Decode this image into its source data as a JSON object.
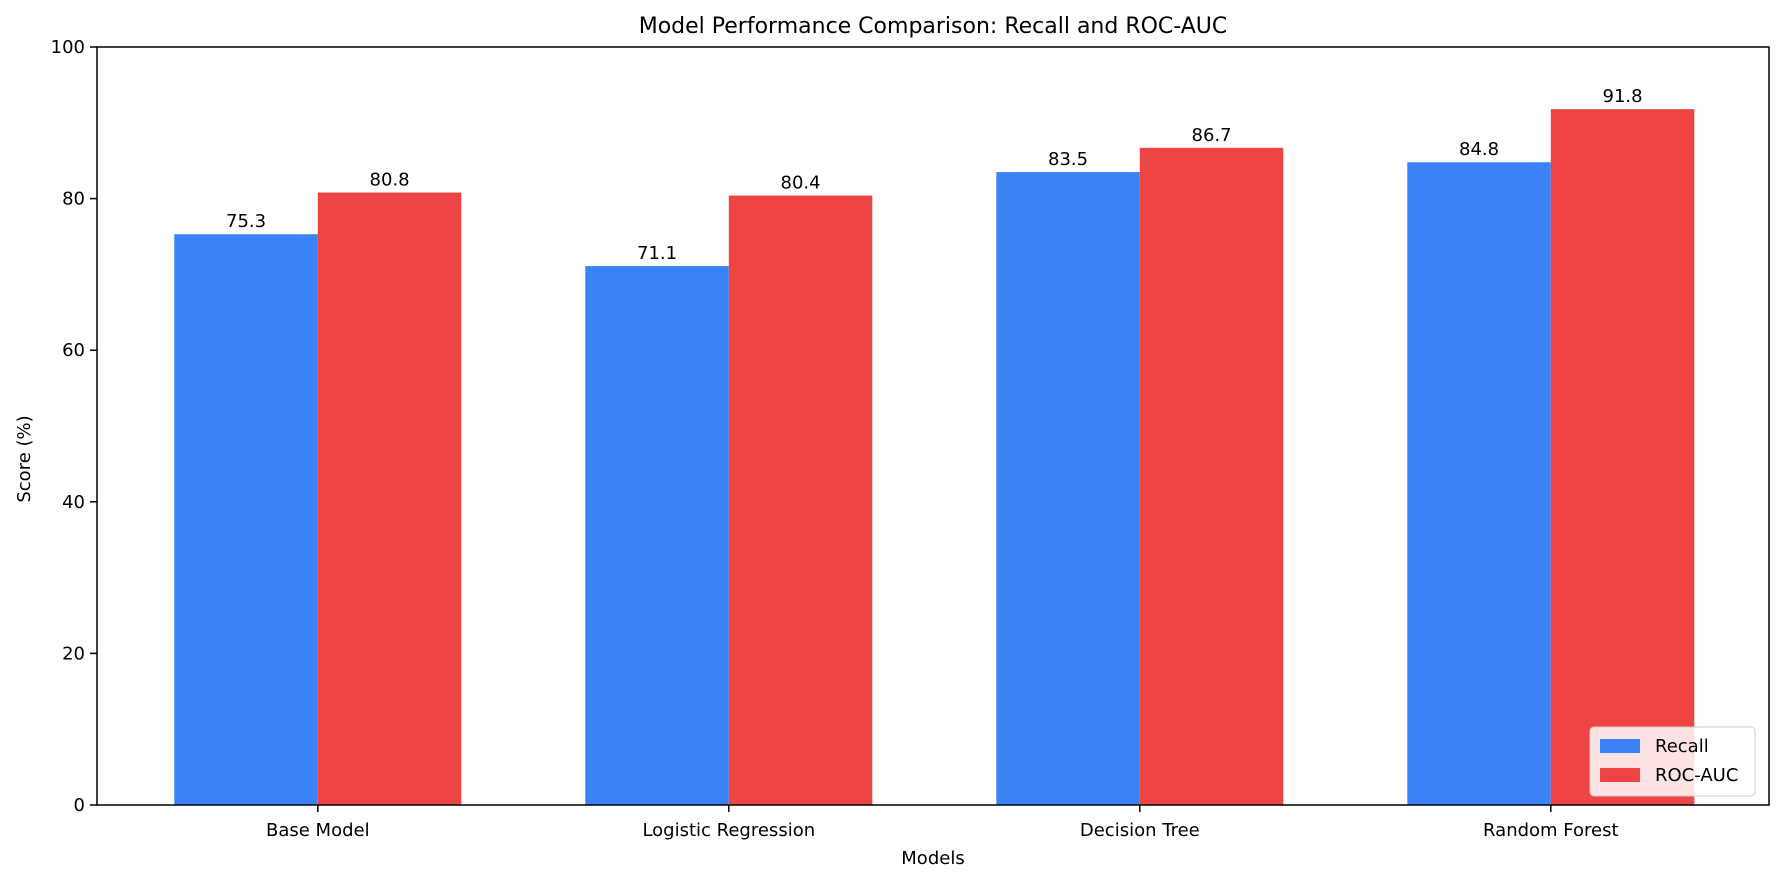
{
  "chart_data": {
    "type": "bar",
    "title": "Model Performance Comparison: Recall and ROC-AUC",
    "xlabel": "Models",
    "ylabel": "Score (%)",
    "ylim": [
      0,
      100
    ],
    "yticks": [
      0,
      20,
      40,
      60,
      80,
      100
    ],
    "categories": [
      "Base Model",
      "Logistic Regression",
      "Decision Tree",
      "Random Forest"
    ],
    "series": [
      {
        "name": "Recall",
        "color": "#3b82f6",
        "values": [
          75.3,
          71.1,
          83.5,
          84.8
        ]
      },
      {
        "name": "ROC-AUC",
        "color": "#ef4444",
        "values": [
          80.8,
          80.4,
          86.7,
          91.8
        ]
      }
    ],
    "legend_position": "lower-right",
    "grid": false
  }
}
